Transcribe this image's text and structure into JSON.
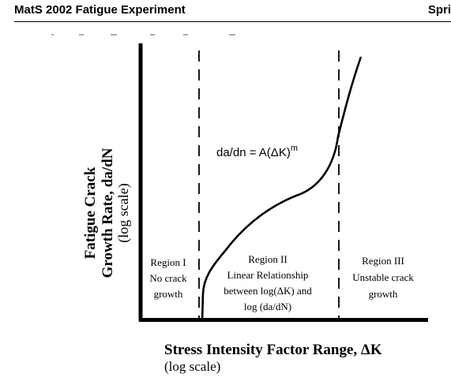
{
  "header": {
    "title": "MatS 2002 Fatigue Experiment",
    "right_text": "Spri"
  },
  "figure": {
    "ylabel_line1": "Fatigue Crack",
    "ylabel_line2": "Growth Rate, da/dN",
    "ylabel_line3": "(log scale)",
    "xlabel_line1": "Stress Intensity Factor Range, ΔK",
    "xlabel_line2": "(log scale)",
    "equation": "da/dn = A(ΔK)",
    "equation_exponent": "m",
    "regions": [
      {
        "lines": [
          "Region I",
          "No crack",
          "growth"
        ]
      },
      {
        "lines": [
          "Region II",
          "Linear Relationship",
          "between log(ΔK) and",
          "log (da/dN)"
        ]
      },
      {
        "lines": [
          "Region III",
          "Unstable crack",
          "growth"
        ]
      }
    ]
  }
}
